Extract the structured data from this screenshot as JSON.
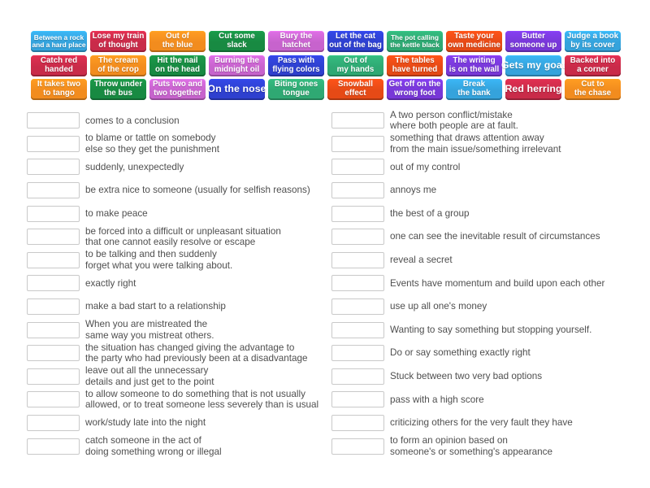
{
  "activity": {
    "kind": "match-up",
    "tile_text_color": "#ffffff",
    "definition_text_color": "#4f4f4f",
    "drop_box_border_color": "#c9c9c9"
  },
  "palette": {
    "lightblue": "#35a3dc",
    "crimson": "#c92b49",
    "orange": "#f28c1e",
    "green": "#188a42",
    "orchid": "#c763cd",
    "royalblue": "#2e40cf",
    "teal": "#2fa973",
    "orangered": "#e64a16",
    "purple": "#7838d8"
  },
  "tiles": [
    {
      "label": "Between a rock\nand a hard place",
      "color": "lightblue",
      "size": "xs"
    },
    {
      "label": "Lose my train\nof thought",
      "color": "crimson",
      "size": "sm"
    },
    {
      "label": "Out of\nthe blue",
      "color": "orange",
      "size": "sm"
    },
    {
      "label": "Cut some\nslack",
      "color": "green",
      "size": "sm"
    },
    {
      "label": "Bury the\nhatchet",
      "color": "orchid",
      "size": "sm"
    },
    {
      "label": "Let the cat\nout of the bag",
      "color": "royalblue",
      "size": "sm"
    },
    {
      "label": "The pot calling\nthe kettle black",
      "color": "teal",
      "size": "xs"
    },
    {
      "label": "Taste your\nown medicine",
      "color": "orangered",
      "size": "sm"
    },
    {
      "label": "Butter\nsomeone up",
      "color": "purple",
      "size": "sm"
    },
    {
      "label": "Judge a book\nby its cover",
      "color": "lightblue",
      "size": "sm"
    },
    {
      "label": "Catch red\nhanded",
      "color": "crimson",
      "size": "sm"
    },
    {
      "label": "The cream\nof the crop",
      "color": "orange",
      "size": "sm"
    },
    {
      "label": "Hit the nail\non the head",
      "color": "green",
      "size": "sm"
    },
    {
      "label": "Burning the\nmidnight oil",
      "color": "orchid",
      "size": "sm"
    },
    {
      "label": "Pass with\nflying colors",
      "color": "royalblue",
      "size": "sm"
    },
    {
      "label": "Out of\nmy hands",
      "color": "teal",
      "size": "sm"
    },
    {
      "label": "The tables\nhave turned",
      "color": "orangered",
      "size": "sm"
    },
    {
      "label": "The writing\nis on the wall",
      "color": "purple",
      "size": "sm"
    },
    {
      "label": "Gets my goat",
      "color": "lightblue",
      "size": "lg"
    },
    {
      "label": "Backed into\na corner",
      "color": "crimson",
      "size": "sm"
    },
    {
      "label": "It takes two\nto tango",
      "color": "orange",
      "size": "sm"
    },
    {
      "label": "Throw under\nthe bus",
      "color": "green",
      "size": "sm"
    },
    {
      "label": "Puts two and\ntwo together",
      "color": "orchid",
      "size": "sm"
    },
    {
      "label": "On the nose",
      "color": "royalblue",
      "size": "lg"
    },
    {
      "label": "Biting ones\ntongue",
      "color": "teal",
      "size": "sm"
    },
    {
      "label": "Snowball\neffect",
      "color": "orangered",
      "size": "sm"
    },
    {
      "label": "Get off on the\nwrong foot",
      "color": "purple",
      "size": "sm"
    },
    {
      "label": "Break\nthe bank",
      "color": "lightblue",
      "size": "sm"
    },
    {
      "label": "Red herring",
      "color": "crimson",
      "size": "lg"
    },
    {
      "label": "Cut to\nthe chase",
      "color": "orange",
      "size": "sm"
    }
  ],
  "rows": [
    {
      "left": "comes to a conclusion",
      "right": "A two person conflict/mistake\nwhere both people are at fault."
    },
    {
      "left": "to blame or tattle on somebody\nelse so they get the punishment",
      "right": "something that draws attention away\nfrom the main issue/something irrelevant"
    },
    {
      "left": "suddenly, unexpectedly",
      "right": "out of my control"
    },
    {
      "left": "be extra nice to someone (usually for selfish reasons)",
      "right": "annoys me"
    },
    {
      "left": "to make peace",
      "right": "the best of a group"
    },
    {
      "left": "be forced into a difficult or unpleasant situation\nthat one cannot easily resolve or escape",
      "right": "one can see the inevitable result of circumstances"
    },
    {
      "left": "to be talking and then suddenly\nforget what you were talking about.",
      "right": "reveal a secret"
    },
    {
      "left": "exactly right",
      "right": "Events have momentum and build upon each other"
    },
    {
      "left": "make a bad start to a relationship",
      "right": "use up all one's money"
    },
    {
      "left": "When you are mistreated the\nsame way you mistreat others.",
      "right": "Wanting to say something but stopping yourself."
    },
    {
      "left": "the situation has changed giving the advantage to\nthe party who had previously been at a disadvantage",
      "right": "Do or say something exactly right"
    },
    {
      "left": "leave out all the unnecessary\ndetails and just get to the point",
      "right": "Stuck between two very bad options"
    },
    {
      "left": "to allow someone to do something that is not usually\nallowed, or to treat someone less severely than is usual",
      "right": "pass with a high score"
    },
    {
      "left": "work/study late into the night",
      "right": "criticizing others for the very fault they have"
    },
    {
      "left": "catch someone in the act of\ndoing something wrong or illegal",
      "right": "to form an opinion based on\nsomeone's or something's appearance"
    }
  ]
}
